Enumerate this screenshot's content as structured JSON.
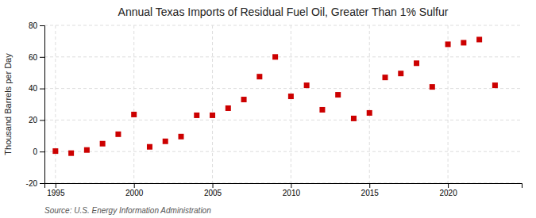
{
  "chart_data": {
    "type": "scatter",
    "title": "Annual Texas Imports of Residual Fuel Oil, Greater Than 1% Sulfur",
    "ylabel": "Thousand Barrels per Day",
    "source": "Source: U.S. Energy Information Administration",
    "x": [
      1995,
      1996,
      1997,
      1998,
      1999,
      2000,
      2001,
      2002,
      2003,
      2004,
      2005,
      2006,
      2007,
      2008,
      2009,
      2010,
      2011,
      2012,
      2013,
      2014,
      2015,
      2016,
      2017,
      2018,
      2019,
      2020,
      2021,
      2022,
      2023
    ],
    "values": [
      0.3,
      -1.0,
      1.0,
      5.0,
      11.0,
      23.5,
      3.0,
      6.5,
      9.5,
      23.0,
      23.0,
      27.5,
      33.0,
      47.5,
      60.0,
      35.0,
      42.0,
      26.5,
      36.0,
      21.0,
      24.5,
      47.0,
      49.5,
      56.0,
      41.0,
      68.0,
      69.0,
      71.0,
      42.0
    ],
    "color": "#cc0000",
    "marker": "square",
    "xlim": [
      1994.3,
      2024.7
    ],
    "xticks": [
      1995,
      2000,
      2005,
      2010,
      2015,
      2020
    ],
    "ylim": [
      -20,
      80
    ],
    "yticks": [
      -20,
      0,
      20,
      40,
      60,
      80
    ],
    "grid": true
  }
}
